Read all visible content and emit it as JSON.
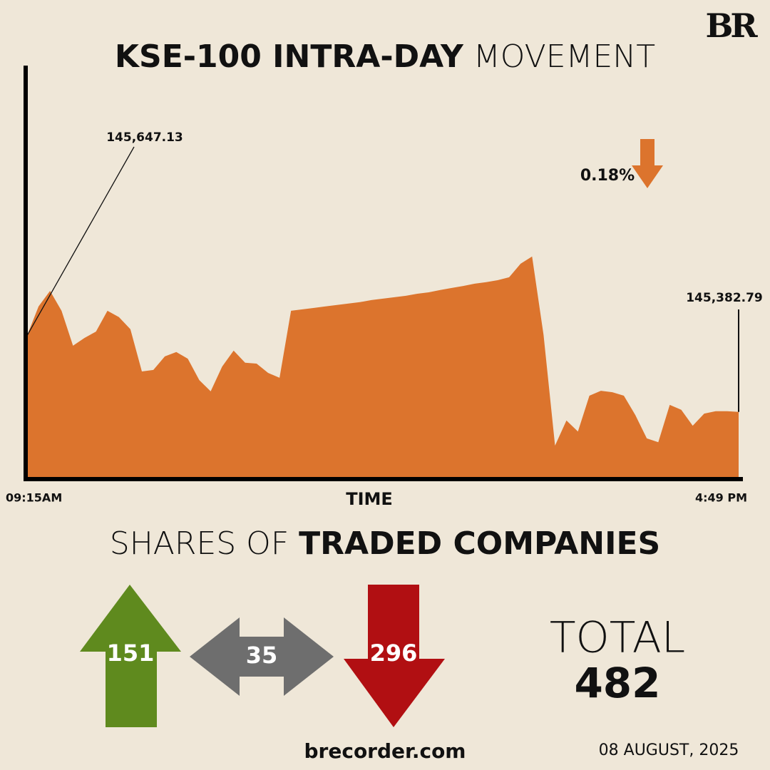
{
  "logo": "BR",
  "chart_data": {
    "type": "area",
    "title_bold": "KSE-100 INTRA-DAY",
    "title_light": "MOVEMENT",
    "x_label": "TIME",
    "categories": [
      "09:15AM",
      null,
      null,
      null,
      null,
      null,
      null,
      null,
      null,
      null,
      null,
      null,
      null,
      null,
      null,
      null,
      null,
      null,
      null,
      null,
      null,
      null,
      null,
      null,
      null,
      null,
      null,
      null,
      null,
      null,
      null,
      null,
      null,
      null,
      null,
      null,
      null,
      null,
      null,
      null,
      null,
      null,
      null,
      null,
      null,
      null,
      null,
      null,
      null,
      null,
      null,
      null,
      null,
      null,
      null,
      null,
      null,
      null,
      null,
      null,
      null,
      null,
      "4:49 PM"
    ],
    "values": [
      145647.13,
      145748,
      145802,
      145733,
      145612,
      145639,
      145661,
      145733,
      145711,
      145669,
      145523,
      145528,
      145575,
      145590,
      145567,
      145493,
      145454,
      145540,
      145595,
      145553,
      145550,
      145518,
      145501,
      145733,
      145738,
      145743,
      145748,
      145753,
      145758,
      145763,
      145770,
      145775,
      145780,
      145785,
      145792,
      145797,
      145805,
      145812,
      145819,
      145827,
      145832,
      145839,
      145849,
      145896,
      145921,
      145649,
      145266,
      145353,
      145315,
      145439,
      145456,
      145451,
      145439,
      145372,
      145291,
      145278,
      145407,
      145390,
      145335,
      145377,
      145385,
      145385,
      145382.79
    ],
    "value_labels": [
      "145,647.13",
      null,
      null,
      null,
      null,
      null,
      null,
      null,
      null,
      null,
      null,
      null,
      null,
      null,
      null,
      null,
      null,
      null,
      null,
      null,
      null,
      null,
      null,
      null,
      null,
      null,
      null,
      null,
      null,
      null,
      null,
      null,
      null,
      null,
      null,
      null,
      null,
      null,
      null,
      null,
      null,
      null,
      null,
      null,
      null,
      null,
      null,
      null,
      null,
      null,
      null,
      null,
      null,
      null,
      null,
      null,
      null,
      null,
      null,
      null,
      null,
      null,
      "145,382.79"
    ],
    "color": "#dc742d",
    "ylim": [
      145150,
      145960
    ],
    "change": {
      "value": 0.18,
      "label": "0.18%"
    }
  },
  "shares": {
    "title_light": "SHARES OF",
    "title_bold": "TRADED COMPANIES",
    "advancing": "151",
    "unchanged": "35",
    "declining": "296",
    "total_label": "TOTAL",
    "total": "482"
  },
  "site": "brecorder.com",
  "date": "08 AUGUST, 2025"
}
